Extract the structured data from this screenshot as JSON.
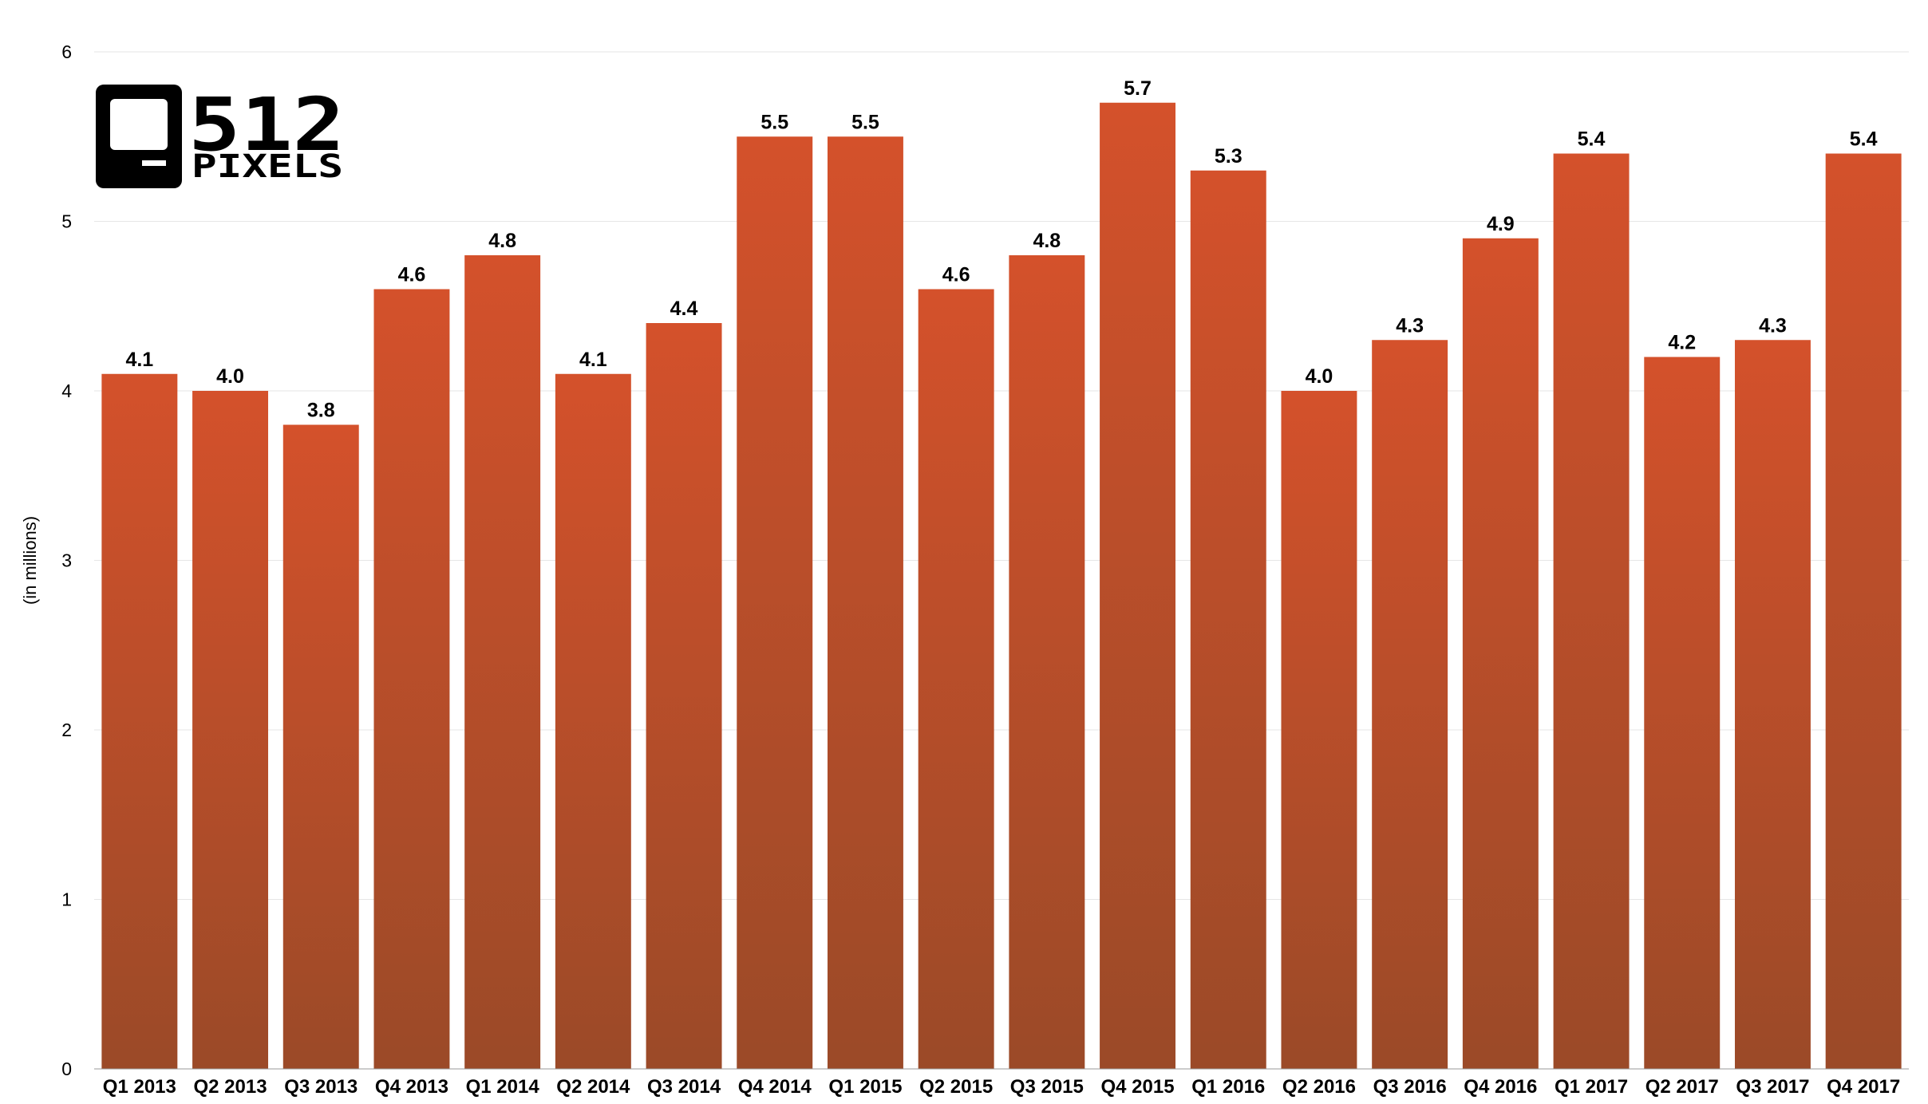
{
  "chart_data": {
    "type": "bar",
    "categories": [
      "Q1 2013",
      "Q2 2013",
      "Q3 2013",
      "Q4 2013",
      "Q1 2014",
      "Q2 2014",
      "Q3 2014",
      "Q4 2014",
      "Q1 2015",
      "Q2 2015",
      "Q3 2015",
      "Q4 2015",
      "Q1 2016",
      "Q2 2016",
      "Q3 2016",
      "Q4 2016",
      "Q1 2017",
      "Q2 2017",
      "Q3 2017",
      "Q4 2017"
    ],
    "values": [
      4.1,
      4.0,
      3.8,
      4.6,
      4.8,
      4.1,
      4.4,
      5.5,
      5.5,
      4.6,
      4.8,
      5.7,
      5.3,
      4.0,
      4.3,
      4.9,
      5.4,
      4.2,
      4.3,
      5.4
    ],
    "data_labels": [
      "4.1",
      "4.0",
      "3.8",
      "4.6",
      "4.8",
      "4.1",
      "4.4",
      "5.5",
      "5.5",
      "4.6",
      "4.8",
      "5.7",
      "5.3",
      "4.0",
      "4.3",
      "4.9",
      "5.4",
      "4.2",
      "4.3",
      "5.4"
    ],
    "title": "",
    "xlabel": "",
    "ylabel": "(in millions)",
    "ylim": [
      0,
      6
    ],
    "yticks": [
      "0",
      "1",
      "2",
      "3",
      "4",
      "5",
      "6"
    ],
    "grid": true,
    "bar_color_top": "#d4512b",
    "bar_color_bottom": "#9b4a28"
  },
  "logo": {
    "name": "512 Pixels",
    "line1": "512",
    "line2": "PIXELS"
  }
}
